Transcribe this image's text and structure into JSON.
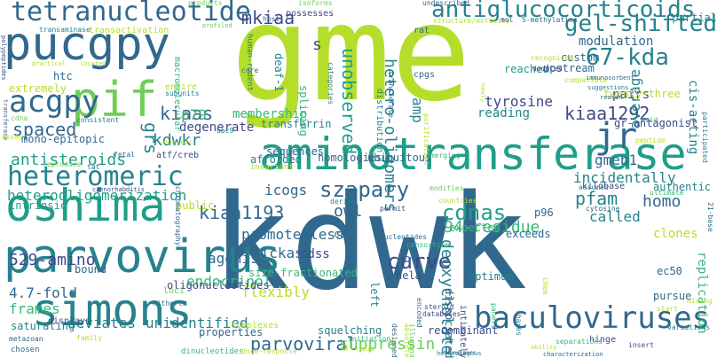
{
  "palette": {
    "yellow_green": "#b5de2b",
    "light_green": "#6ece58",
    "green": "#35b779",
    "teal": "#1f9e89",
    "cyan_blue": "#26828e",
    "steel_blue": "#31688e",
    "indigo": "#3e4989",
    "deep_purple": "#482878",
    "dark_purple": "#440154"
  },
  "words": [
    {
      "text": "gme",
      "color": "#b5de2b"
    },
    {
      "text": "kdwk",
      "color": "#31688e"
    },
    {
      "text": "pucgpy",
      "color": "#31688e"
    },
    {
      "text": "aminotransferase",
      "color": "#1f9e89"
    },
    {
      "text": "parvovirus",
      "color": "#26828e"
    },
    {
      "text": "simons",
      "color": "#26828e"
    },
    {
      "text": "oshima",
      "color": "#1f9e89"
    },
    {
      "text": "pif",
      "color": "#6ece58"
    },
    {
      "text": "tetranucleotide",
      "color": "#31688e"
    },
    {
      "text": "antiglucocorticoids",
      "color": "#26828e"
    },
    {
      "text": "heteromeric",
      "color": "#26828e"
    },
    {
      "text": "baculoviruses",
      "color": "#31688e"
    },
    {
      "text": "acgpy",
      "color": "#31688e"
    },
    {
      "text": "gel-shifted",
      "color": "#26828e"
    },
    {
      "text": "67-kda",
      "color": "#26828e"
    },
    {
      "text": "jr",
      "color": "#31688e"
    },
    {
      "text": "szapary",
      "color": "#31688e"
    },
    {
      "text": "curve",
      "color": "#3e4989"
    },
    {
      "text": "kiaa1193",
      "color": "#31688e"
    },
    {
      "text": "cdnas",
      "color": "#1f9e89"
    },
    {
      "text": "parvoviral",
      "color": "#31688e"
    },
    {
      "text": "529-amino",
      "color": "#3e4989"
    },
    {
      "text": "kiaa1292",
      "color": "#3e4989"
    },
    {
      "text": "unobserved",
      "color": "#1f9e89"
    },
    {
      "text": "hetero-oligomers",
      "color": "#26828e"
    },
    {
      "text": "mkiaa",
      "color": "#3e4989"
    },
    {
      "text": "kiaas",
      "color": "#31688e"
    },
    {
      "text": "kdwkr",
      "color": "#26828e"
    },
    {
      "text": "spaced",
      "color": "#31688e"
    },
    {
      "text": "heterooligomerization",
      "color": "#1f9e89"
    },
    {
      "text": "antisteroids",
      "color": "#1f9e89"
    },
    {
      "text": "p79",
      "color": "#35b779"
    },
    {
      "text": "grs",
      "color": "#26828e"
    },
    {
      "text": "icogs",
      "color": "#31688e"
    },
    {
      "text": "owl",
      "color": "#31688e"
    },
    {
      "text": "pfam",
      "color": "#26828e"
    },
    {
      "text": "homo",
      "color": "#31688e"
    },
    {
      "text": "promoterless",
      "color": "#31688e"
    },
    {
      "text": "94-residue",
      "color": "#35b779"
    },
    {
      "text": "endocrinol",
      "color": "#35b779"
    },
    {
      "text": "agonist",
      "color": "#31688e"
    },
    {
      "text": "nickase",
      "color": "#31688e"
    },
    {
      "text": "cdss",
      "color": "#3e4989"
    },
    {
      "text": "deoxycholate",
      "color": "#26828e"
    },
    {
      "text": "4.7-fold",
      "color": "#31688e"
    },
    {
      "text": "frames",
      "color": "#35b779"
    },
    {
      "text": "deviates",
      "color": "#26828e"
    },
    {
      "text": "unidentified",
      "color": "#26828e"
    },
    {
      "text": "flexibly",
      "color": "#b5de2b"
    },
    {
      "text": "suppressin",
      "color": "#6ece58"
    },
    {
      "text": "called",
      "color": "#26828e"
    },
    {
      "text": "gmeb1",
      "color": "#31688e"
    },
    {
      "text": "incidentally",
      "color": "#26828e"
    },
    {
      "text": "average",
      "color": "#26828e"
    },
    {
      "text": "membership",
      "color": "#35b779"
    },
    {
      "text": "degenerate",
      "color": "#3e4989"
    },
    {
      "text": "tyrosine",
      "color": "#3e4989"
    },
    {
      "text": "reading",
      "color": "#26828e"
    },
    {
      "text": "modulation",
      "color": "#31688e"
    },
    {
      "text": "pairs",
      "color": "#3e4989"
    },
    {
      "text": "cis-acting",
      "color": "#26828e"
    },
    {
      "text": "replication",
      "color": "#35b779"
    },
    {
      "text": "homologies",
      "color": "#31688e"
    },
    {
      "text": "afforded",
      "color": "#26828e"
    },
    {
      "text": "ubiquitous",
      "color": "#31688e"
    },
    {
      "text": "intrinsic",
      "color": "#1f9e89"
    },
    {
      "text": "public",
      "color": "#b5de2b"
    },
    {
      "text": "extremely",
      "color": "#b5de2b"
    },
    {
      "text": "htc",
      "color": "#31688e"
    },
    {
      "text": "mono-epitopic",
      "color": "#31688e"
    },
    {
      "text": "transactivation",
      "color": "#b5de2b"
    },
    {
      "text": "possesses",
      "color": "#3e4989"
    },
    {
      "text": "transaminase",
      "color": "#26828e"
    },
    {
      "text": "macromolecular",
      "color": "#35b779"
    },
    {
      "text": "s",
      "color": "#3e4989"
    },
    {
      "text": "amp",
      "color": "#26828e"
    },
    {
      "text": "cpgs",
      "color": "#31688e"
    },
    {
      "text": "reached",
      "color": "#1f9e89"
    },
    {
      "text": "upstream",
      "color": "#31688e"
    },
    {
      "text": "custom",
      "color": "#31688e"
    },
    {
      "text": "twenty-three",
      "color": "#b5de2b"
    },
    {
      "text": "gr-antagonist",
      "color": "#3e4989"
    },
    {
      "text": "transferrin",
      "color": "#26828e"
    },
    {
      "text": "sequences",
      "color": "#31688e"
    },
    {
      "text": "ec50",
      "color": "#31688e"
    },
    {
      "text": "clones",
      "color": "#b5de2b"
    },
    {
      "text": "authentic",
      "color": "#26828e"
    },
    {
      "text": "kb",
      "color": "#31688e"
    },
    {
      "text": "cbp",
      "color": "#31688e"
    },
    {
      "text": "p96",
      "color": "#31688e"
    },
    {
      "text": "exceeds",
      "color": "#31688e"
    },
    {
      "text": "expected",
      "color": "#35b779"
    },
    {
      "text": "left",
      "color": "#26828e"
    },
    {
      "text": "hela",
      "color": "#3e4989"
    },
    {
      "text": "optimum",
      "color": "#26828e"
    },
    {
      "text": "dissociated",
      "color": "#31688e"
    },
    {
      "text": "pursue",
      "color": "#31688e"
    },
    {
      "text": "squelching",
      "color": "#26828e"
    },
    {
      "text": "recombinant",
      "color": "#3e4989"
    },
    {
      "text": "properties",
      "color": "#31688e"
    },
    {
      "text": "saturating",
      "color": "#26828e"
    },
    {
      "text": "bound",
      "color": "#31688e"
    },
    {
      "text": "size-fractionated",
      "color": "#35b779"
    },
    {
      "text": "oligonucleotides",
      "color": "#3e4989"
    },
    {
      "text": "atf/creb",
      "color": "#3e4989"
    },
    {
      "text": "complexes",
      "color": "#b5de2b"
    },
    {
      "text": "loci",
      "color": "#6ece58"
    },
    {
      "text": "deaf-1",
      "color": "#26828e"
    },
    {
      "text": "splicing",
      "color": "#35b779"
    },
    {
      "text": "distribution",
      "color": "#26828e"
    },
    {
      "text": "rat",
      "color": "#31688e"
    },
    {
      "text": "partial",
      "color": "#26828e"
    },
    {
      "text": "kilobase",
      "color": "#3e4989"
    },
    {
      "text": "hinge",
      "color": "#3e4989"
    },
    {
      "text": "displays",
      "color": "#3e4989"
    },
    {
      "text": "reproduce",
      "color": "#6ece58"
    },
    {
      "text": "consistent",
      "color": "#26828e"
    },
    {
      "text": "cdna",
      "color": "#6ece58"
    },
    {
      "text": "entire",
      "color": "#b5de2b"
    },
    {
      "text": "subunits",
      "color": "#26828e"
    },
    {
      "text": "core",
      "color": "#31688e"
    },
    {
      "text": "recognized",
      "color": "#b5de2b"
    },
    {
      "text": "deduced",
      "color": "#3e4989"
    },
    {
      "text": "compatible",
      "color": "#b5de2b"
    },
    {
      "text": "ultimate",
      "color": "#35b779"
    },
    {
      "text": "assumed",
      "color": "#26828e"
    },
    {
      "text": "cytosine",
      "color": "#31688e"
    },
    {
      "text": "mixing",
      "color": "#b5de2b"
    },
    {
      "text": "variations",
      "color": "#26828e"
    },
    {
      "text": "insert",
      "color": "#3e4989"
    },
    {
      "text": "separations",
      "color": "#35b779"
    },
    {
      "text": "characterization",
      "color": "#31688e"
    },
    {
      "text": "heterologous",
      "color": "#26828e"
    },
    {
      "text": "intimately",
      "color": "#3e4989"
    },
    {
      "text": "nucleotides",
      "color": "#31688e"
    },
    {
      "text": "dinucleotides",
      "color": "#35b779"
    },
    {
      "text": "dose-response",
      "color": "#b5de2b"
    },
    {
      "text": "chosen",
      "color": "#31688e"
    },
    {
      "text": "metazoan",
      "color": "#31688e"
    },
    {
      "text": "family",
      "color": "#b5de2b"
    },
    {
      "text": "products",
      "color": "#6ece58"
    },
    {
      "text": "isoforms",
      "color": "#6ece58"
    },
    {
      "text": "undescribed",
      "color": "#31688e"
    },
    {
      "text": "structure/motility",
      "color": "#b5de2b"
    },
    {
      "text": "5-methylation",
      "color": "#31688e"
    },
    {
      "text": "mol",
      "color": "#3e4989"
    },
    {
      "text": "host",
      "color": "#31688e"
    },
    {
      "text": "profiled",
      "color": "#6ece58"
    },
    {
      "text": "polypeptides",
      "color": "#3e4989"
    },
    {
      "text": "practical",
      "color": "#b5de2b"
    },
    {
      "text": "located",
      "color": "#b5de2b"
    },
    {
      "text": "human-rodent",
      "color": "#26828e"
    },
    {
      "text": "categories",
      "color": "#26828e"
    },
    {
      "text": "immunosorbent",
      "color": "#31688e"
    },
    {
      "text": "suggestions",
      "color": "#26828e"
    },
    {
      "text": "acid",
      "color": "#35b779"
    },
    {
      "text": "reason",
      "color": "#31688e"
    },
    {
      "text": "peptide",
      "color": "#b5de2b"
    },
    {
      "text": "fetal",
      "color": "#31688e"
    },
    {
      "text": "nucleic",
      "color": "#b5de2b"
    },
    {
      "text": "ubc9",
      "color": "#26828e"
    },
    {
      "text": "invariant",
      "color": "#b5de2b"
    },
    {
      "text": "emerging",
      "color": "#35b779"
    },
    {
      "text": "modifies",
      "color": "#6ece58"
    },
    {
      "text": "countries",
      "color": "#b5de2b"
    },
    {
      "text": "derive",
      "color": "#26828e"
    },
    {
      "text": "permit",
      "color": "#3e4989"
    },
    {
      "text": "consortium",
      "color": "#35b779"
    },
    {
      "text": "encoded",
      "color": "#31688e"
    },
    {
      "text": "panels",
      "color": "#35b779"
    },
    {
      "text": "shares",
      "color": "#26828e"
    },
    {
      "text": "illumina",
      "color": "#6ece58"
    },
    {
      "text": "databases",
      "color": "#3e4989"
    },
    {
      "text": "steroid",
      "color": "#3e4989"
    },
    {
      "text": "designed",
      "color": "#31688e"
    },
    {
      "text": "absolute",
      "color": "#b5de2b"
    },
    {
      "text": "hitherto",
      "color": "#31688e"
    },
    {
      "text": "caenorhabditis",
      "color": "#3e4989"
    },
    {
      "text": "chromatography",
      "color": "#31688e"
    },
    {
      "text": "initiation",
      "color": "#35b779"
    },
    {
      "text": "3'-rapid",
      "color": "#b5de2b"
    },
    {
      "text": "start",
      "color": "#b5de2b"
    },
    {
      "text": "newly",
      "color": "#b5de2b"
    },
    {
      "text": "participated",
      "color": "#26828e"
    },
    {
      "text": "21-base",
      "color": "#31688e"
    },
    {
      "text": "homodimers",
      "color": "#31688e"
    },
    {
      "text": "ability",
      "color": "#b5de2b"
    },
    {
      "text": "chem",
      "color": "#b5de2b"
    },
    {
      "text": "purification",
      "color": "#b5de2b"
    },
    {
      "text": "transferase",
      "color": "#31688e"
    },
    {
      "text": "transferase",
      "color": "#31688e"
    },
    {
      "text": "assay",
      "color": "#b5de2b"
    },
    {
      "text": "tat",
      "color": "#31688e"
    },
    {
      "text": "nuclear",
      "color": "#6ece58"
    }
  ]
}
